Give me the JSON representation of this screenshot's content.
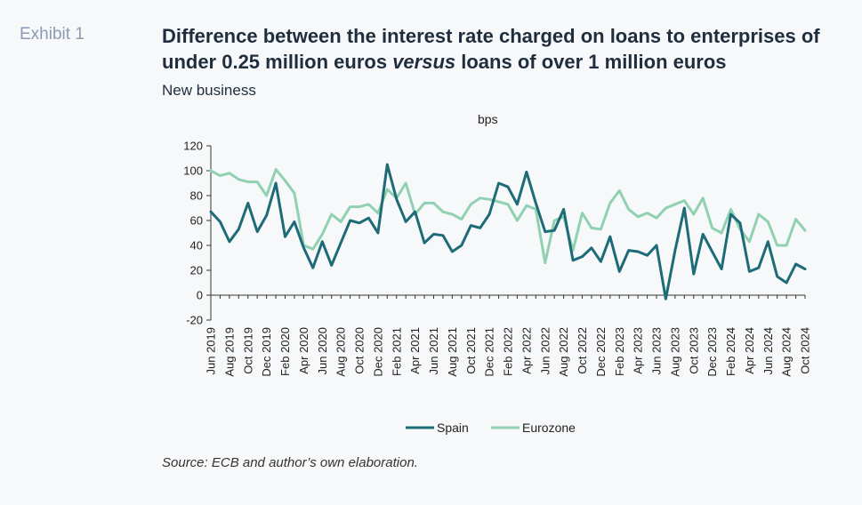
{
  "exhibit_label": "Exhibit 1",
  "title_part1": "Difference between the interest rate charged on loans to enterprises of under 0.25 million euros ",
  "title_emph": "versus",
  "title_part2": " loans of over 1 million euros",
  "subtitle": "New business",
  "source": "Source: ECB and author’s own elaboration.",
  "chart_data": {
    "type": "line",
    "ylabel": "bps",
    "ylim": [
      -20,
      120
    ],
    "yticks": [
      -20,
      0,
      20,
      40,
      60,
      80,
      100,
      120
    ],
    "x_tick_labels": [
      "Jun 2019",
      "Aug 2019",
      "Oct 2019",
      "Dec 2019",
      "Feb 2020",
      "Apr 2020",
      "Jun 2020",
      "Aug 2020",
      "Oct 2020",
      "Dec 2020",
      "Feb 2021",
      "Apr 2021",
      "Jun 2021",
      "Aug 2021",
      "Oct 2021",
      "Dec 2021",
      "Feb 2022",
      "Apr 2022",
      "Jun 2022",
      "Aug 2022",
      "Oct 2022",
      "Dec 2022",
      "Feb 2023",
      "Apr 2023",
      "Jun 2023",
      "Aug 2023",
      "Oct 2023",
      "Dec 2023",
      "Feb 2024",
      "Apr 2024",
      "Jun 2024",
      "Aug 2024",
      "Oct 2024"
    ],
    "legend_position": "bottom",
    "grid": false,
    "series": [
      {
        "name": "Spain",
        "color": "#1e6b78",
        "values": [
          67,
          59,
          43,
          53,
          74,
          51,
          64,
          90,
          47,
          59,
          38,
          22,
          43,
          24,
          42,
          60,
          58,
          62,
          50,
          105,
          77,
          59,
          67,
          42,
          49,
          48,
          35,
          40,
          56,
          54,
          65,
          90,
          87,
          73,
          99,
          74,
          51,
          52,
          69,
          28,
          31,
          38,
          27,
          47,
          19,
          36,
          35,
          32,
          40,
          -3,
          36,
          70,
          17,
          49,
          35,
          21,
          65,
          58,
          19,
          22,
          43,
          15,
          10,
          25,
          21
        ]
      },
      {
        "name": "Eurozone",
        "color": "#8fd1b0",
        "values": [
          100,
          96,
          98,
          93,
          91,
          91,
          80,
          101,
          92,
          82,
          40,
          37,
          49,
          65,
          59,
          71,
          71,
          73,
          66,
          85,
          78,
          90,
          65,
          74,
          74,
          67,
          65,
          61,
          73,
          78,
          77,
          75,
          73,
          60,
          72,
          69,
          26,
          60,
          63,
          36,
          66,
          54,
          53,
          74,
          84,
          69,
          63,
          66,
          62,
          70,
          73,
          76,
          65,
          78,
          54,
          50,
          69,
          53,
          43,
          65,
          59,
          40,
          40,
          61,
          52
        ]
      }
    ]
  }
}
